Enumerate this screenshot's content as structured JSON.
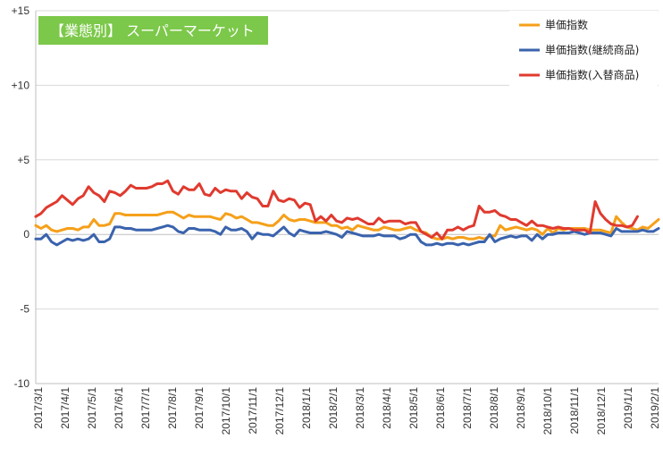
{
  "chart_data": {
    "type": "line",
    "title": "【業態別】 スーパーマーケット",
    "ylim": [
      -10,
      15
    ],
    "yticks": [
      15,
      10,
      5,
      0,
      -5,
      -10
    ],
    "ytick_labels": [
      "+15",
      "+10",
      "+5",
      "0",
      "-5",
      "-10"
    ],
    "xtick_labels": [
      "2017/3/1",
      "2017/4/1",
      "2017/5/1",
      "2017/6/1",
      "2017/7/1",
      "2017/8/1",
      "2017/9/1",
      "2017/10/1",
      "2017/11/1",
      "2017/12/1",
      "2018/1/1",
      "2018/2/1",
      "2018/3/1",
      "2018/4/1",
      "2018/5/1",
      "2018/6/1",
      "2018/7/1",
      "2018/8/1",
      "2018/9/1",
      "2018/10/1",
      "2018/11/1",
      "2018/12/1",
      "2019/1/1",
      "2019/2/1"
    ],
    "x_resolution": "weekly",
    "grid": "horizontal",
    "legend_position": "top-right",
    "colors": {
      "title_background": "#7cc84a",
      "gridline": "#d9d9d9"
    },
    "series": [
      {
        "name": "単価指数",
        "color": "#f5a01a",
        "values": [
          0.6,
          0.4,
          0.6,
          0.3,
          0.2,
          0.3,
          0.4,
          0.4,
          0.3,
          0.5,
          0.5,
          1.0,
          0.6,
          0.6,
          0.7,
          1.4,
          1.4,
          1.3,
          1.3,
          1.3,
          1.3,
          1.3,
          1.3,
          1.3,
          1.4,
          1.5,
          1.5,
          1.3,
          1.1,
          1.3,
          1.2,
          1.2,
          1.2,
          1.2,
          1.1,
          1.0,
          1.4,
          1.3,
          1.1,
          1.2,
          1.0,
          0.8,
          0.8,
          0.7,
          0.6,
          0.6,
          0.9,
          1.3,
          1.0,
          0.9,
          1.0,
          1.0,
          0.9,
          0.8,
          0.8,
          0.8,
          0.6,
          0.6,
          0.4,
          0.5,
          0.3,
          0.6,
          0.5,
          0.4,
          0.3,
          0.3,
          0.5,
          0.4,
          0.3,
          0.3,
          0.4,
          0.5,
          0.3,
          0.2,
          0.1,
          -0.2,
          -0.3,
          -0.3,
          -0.2,
          -0.3,
          -0.2,
          -0.2,
          -0.3,
          -0.3,
          -0.2,
          -0.3,
          -0.1,
          -0.1,
          0.6,
          0.3,
          0.4,
          0.5,
          0.4,
          0.3,
          0.4,
          0.3,
          0.0,
          0.4,
          0.1,
          0.4,
          0.3,
          0.4,
          0.4,
          0.4,
          0.4,
          0.3,
          0.3,
          0.3,
          0.2,
          0.1,
          1.2,
          0.8,
          0.5,
          0.4,
          0.3,
          0.5,
          0.4,
          0.7,
          1.0
        ]
      },
      {
        "name": "単価指数(継続商品)",
        "color": "#3a63ad",
        "values": [
          -0.3,
          -0.3,
          0.0,
          -0.5,
          -0.7,
          -0.5,
          -0.3,
          -0.4,
          -0.3,
          -0.4,
          -0.3,
          0.0,
          -0.5,
          -0.5,
          -0.3,
          0.5,
          0.5,
          0.4,
          0.4,
          0.3,
          0.3,
          0.3,
          0.3,
          0.4,
          0.5,
          0.6,
          0.5,
          0.2,
          0.1,
          0.4,
          0.4,
          0.3,
          0.3,
          0.3,
          0.2,
          0.0,
          0.5,
          0.3,
          0.3,
          0.4,
          0.2,
          -0.3,
          0.1,
          0.0,
          0.0,
          -0.1,
          0.2,
          0.5,
          0.1,
          -0.1,
          0.3,
          0.2,
          0.1,
          0.1,
          0.1,
          0.2,
          0.1,
          0.0,
          -0.2,
          0.2,
          0.1,
          0.0,
          -0.1,
          -0.1,
          -0.1,
          0.0,
          -0.1,
          -0.1,
          -0.1,
          -0.3,
          -0.2,
          0.0,
          0.0,
          -0.5,
          -0.7,
          -0.7,
          -0.6,
          -0.7,
          -0.6,
          -0.6,
          -0.7,
          -0.6,
          -0.7,
          -0.6,
          -0.5,
          -0.5,
          0.0,
          -0.5,
          -0.3,
          -0.2,
          -0.1,
          -0.2,
          -0.1,
          -0.1,
          -0.4,
          0.0,
          -0.3,
          0.0,
          0.0,
          0.1,
          0.1,
          0.1,
          0.2,
          0.1,
          0.0,
          0.1,
          0.1,
          0.1,
          0.0,
          -0.1,
          0.4,
          0.2,
          0.2,
          0.2,
          0.2,
          0.3,
          0.2,
          0.2,
          0.4
        ]
      },
      {
        "name": "単価指数(入替商品)",
        "color": "#e03a2f",
        "values": [
          1.2,
          1.4,
          1.8,
          2.0,
          2.2,
          2.6,
          2.3,
          2.0,
          2.4,
          2.6,
          3.2,
          2.8,
          2.6,
          2.2,
          2.9,
          2.8,
          2.6,
          2.9,
          3.3,
          3.1,
          3.1,
          3.1,
          3.2,
          3.4,
          3.4,
          3.6,
          2.9,
          2.7,
          3.2,
          3.0,
          3.0,
          3.4,
          2.7,
          2.6,
          3.1,
          2.8,
          3.0,
          2.9,
          2.9,
          2.4,
          2.8,
          2.5,
          2.4,
          1.9,
          1.9,
          2.9,
          2.3,
          2.2,
          2.4,
          2.3,
          1.8,
          2.1,
          2.0,
          0.9,
          1.2,
          0.9,
          1.3,
          0.9,
          0.8,
          1.1,
          1.0,
          1.1,
          0.9,
          0.7,
          0.7,
          1.1,
          0.8,
          0.9,
          0.9,
          0.9,
          0.7,
          0.8,
          0.8,
          0.2,
          0.0,
          -0.2,
          0.1,
          -0.3,
          0.3,
          0.3,
          0.5,
          0.3,
          0.5,
          0.6,
          1.9,
          1.5,
          1.5,
          1.6,
          1.3,
          1.2,
          1.0,
          1.0,
          0.8,
          0.6,
          0.9,
          0.6,
          0.6,
          0.5,
          0.4,
          0.5,
          0.4,
          0.4,
          0.3,
          0.3,
          0.3,
          0.1,
          2.2,
          1.4,
          1.0,
          0.7,
          0.6,
          0.6,
          0.5,
          0.6,
          1.2
        ]
      }
    ]
  }
}
